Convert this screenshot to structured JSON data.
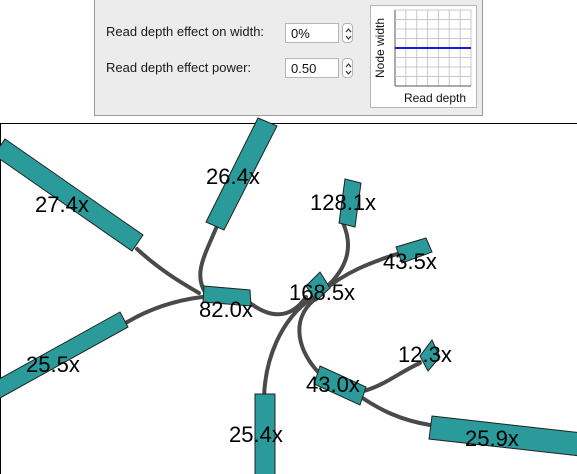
{
  "settings": {
    "width_label": "Read depth effect on width:",
    "width_value": "0%",
    "power_label": "Read depth effect power:",
    "power_value": "0.50"
  },
  "preview": {
    "y_label": "Node width",
    "x_label": "Read depth",
    "line_level": 0.5,
    "line_color": "#1a1adb"
  },
  "graph": {
    "node_color": "#2a9a9a",
    "edge_color": "#4a4a4a",
    "nodes": [
      {
        "name": "node-27-4x",
        "label": "27.4x"
      },
      {
        "name": "node-26-4x",
        "label": "26.4x"
      },
      {
        "name": "node-128-1x",
        "label": "128.1x"
      },
      {
        "name": "node-43-5x",
        "label": "43.5x"
      },
      {
        "name": "node-168-5x",
        "label": "168.5x"
      },
      {
        "name": "node-82-0x",
        "label": "82.0x"
      },
      {
        "name": "node-25-5x",
        "label": "25.5x"
      },
      {
        "name": "node-12-3x",
        "label": "12.3x"
      },
      {
        "name": "node-43-0x",
        "label": "43.0x"
      },
      {
        "name": "node-25-4x",
        "label": "25.4x"
      },
      {
        "name": "node-25-9x",
        "label": "25.9x"
      }
    ]
  }
}
